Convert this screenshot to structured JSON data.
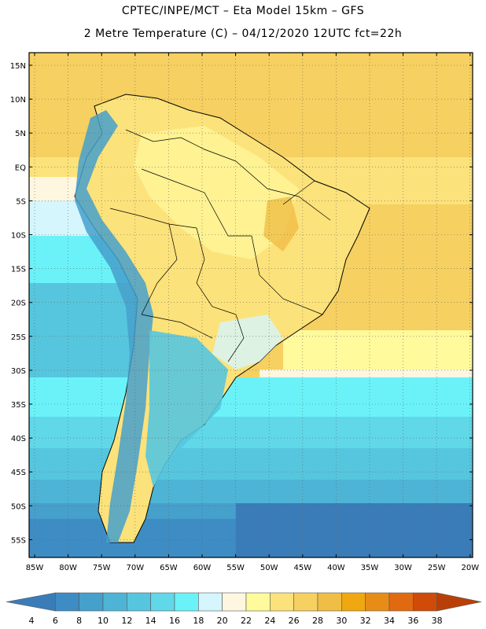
{
  "header": {
    "line1": "CPTEC/INPE/MCT –  Eta Model 15km – GFS",
    "line2": "2 Metre Temperature (C) – 04/12/2020 12UTC fct=22h"
  },
  "map": {
    "lat_ticks": [
      "15N",
      "10N",
      "5N",
      "EQ",
      "5S",
      "10S",
      "15S",
      "20S",
      "25S",
      "30S",
      "35S",
      "40S",
      "45S",
      "50S",
      "55S"
    ],
    "lon_ticks": [
      "85W",
      "80W",
      "75W",
      "70W",
      "65W",
      "60W",
      "55W",
      "50W",
      "45W",
      "40W",
      "35W",
      "30W",
      "25W",
      "20W"
    ]
  },
  "colorbar": {
    "labels": [
      "4",
      "6",
      "8",
      "10",
      "12",
      "14",
      "16",
      "18",
      "20",
      "22",
      "24",
      "26",
      "28",
      "30",
      "32",
      "34",
      "36",
      "38"
    ],
    "colors": [
      "#3a7cb8",
      "#3e8cc4",
      "#45a0cc",
      "#4eb4d6",
      "#56c6de",
      "#60d8e8",
      "#6af2f8",
      "#d4f6fc",
      "#fff6e0",
      "#fffa9c",
      "#fce27a",
      "#f6d060",
      "#f0be46",
      "#f0a810",
      "#e88c18",
      "#e06a10",
      "#d04a08",
      "#b84008"
    ]
  }
}
